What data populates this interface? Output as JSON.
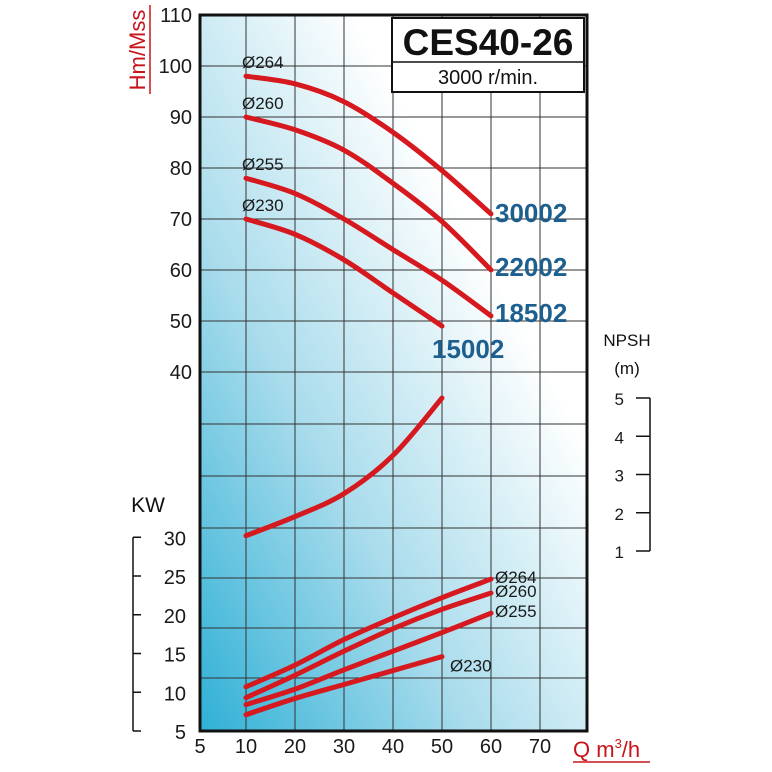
{
  "chart_data": {
    "type": "line",
    "title": "CES40-26",
    "subtitle": "3000 r/min.",
    "ylabel_head": "Hm/Mss",
    "ylabel_power": "KW",
    "ylabel_npsh": "NPSH",
    "ylabel_npsh_unit": "(m)",
    "xlabel": "Q m",
    "xlabel_exp": "3",
    "xlabel_tail": "/h",
    "x_ticks": [
      "5",
      "10",
      "20",
      "30",
      "40",
      "50",
      "60",
      "70"
    ],
    "head_ticks": [
      "110",
      "100",
      "90",
      "80",
      "70",
      "60",
      "50",
      "40"
    ],
    "power_ticks": [
      "30",
      "25",
      "20",
      "15",
      "10",
      "5"
    ],
    "npsh_ticks": [
      "5",
      "4",
      "3",
      "2",
      "1"
    ],
    "head_curves": [
      {
        "name": "Ø264",
        "model": "30002",
        "x": [
          10,
          20,
          30,
          40,
          50,
          60
        ],
        "y": [
          98,
          96.5,
          93,
          87,
          79.5,
          71
        ]
      },
      {
        "name": "Ø260",
        "model": "22002",
        "x": [
          10,
          20,
          30,
          40,
          50,
          60
        ],
        "y": [
          90,
          87.5,
          83.5,
          77,
          69.5,
          60
        ]
      },
      {
        "name": "Ø255",
        "model": "18502",
        "x": [
          10,
          20,
          30,
          40,
          50,
          60
        ],
        "y": [
          78,
          75,
          70,
          64,
          58,
          51
        ]
      },
      {
        "name": "Ø230",
        "model": "15002",
        "x": [
          10,
          20,
          30,
          40,
          50
        ],
        "y": [
          70,
          67,
          62,
          55.5,
          49
        ]
      }
    ],
    "npsh_curve": {
      "x": [
        10,
        20,
        30,
        40,
        50
      ],
      "y": [
        1.4,
        1.9,
        2.5,
        3.5,
        5
      ]
    },
    "power_curves": [
      {
        "name": "Ø264",
        "x": [
          10,
          20,
          30,
          40,
          50,
          60
        ],
        "y": [
          10.7,
          13.5,
          16.8,
          19.6,
          22.2,
          24.6
        ]
      },
      {
        "name": "Ø260",
        "x": [
          10,
          20,
          30,
          40,
          50,
          60
        ],
        "y": [
          9.3,
          12.2,
          15.3,
          18.2,
          20.7,
          22.8
        ]
      },
      {
        "name": "Ø255",
        "x": [
          10,
          20,
          30,
          40,
          50,
          60
        ],
        "y": [
          8.4,
          10.4,
          12.9,
          15.3,
          17.7,
          20.2
        ]
      },
      {
        "name": "Ø230",
        "x": [
          10,
          20,
          30,
          40,
          50
        ],
        "y": [
          7.1,
          9.2,
          11.0,
          12.8,
          14.6
        ]
      }
    ]
  }
}
